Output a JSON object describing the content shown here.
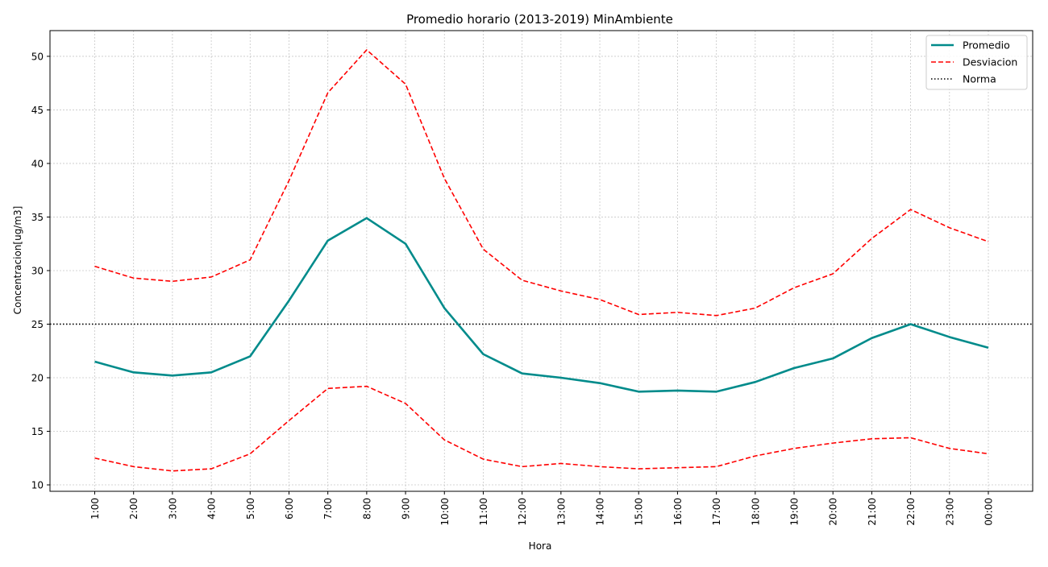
{
  "chart_data": {
    "type": "line",
    "title": "Promedio horario (2013-2019) MinAmbiente",
    "xlabel": "Hora",
    "ylabel": "Concentracion[ug/m3]",
    "categories": [
      "1:00",
      "2:00",
      "3:00",
      "4:00",
      "5:00",
      "6:00",
      "7:00",
      "8:00",
      "9:00",
      "10:00",
      "11:00",
      "12:00",
      "13:00",
      "14:00",
      "15:00",
      "16:00",
      "17:00",
      "18:00",
      "19:00",
      "20:00",
      "21:00",
      "22:00",
      "23:00",
      "00:00"
    ],
    "ylim": [
      9.4,
      52.4
    ],
    "yticks": [
      10,
      15,
      20,
      25,
      30,
      35,
      40,
      45,
      50
    ],
    "grid": true,
    "legend_position": "top-right",
    "series": [
      {
        "name": "Promedio",
        "color": "#008b8b",
        "style": "solid",
        "values": [
          21.5,
          20.5,
          20.2,
          20.5,
          22.0,
          27.2,
          32.8,
          34.9,
          32.5,
          26.5,
          22.2,
          20.4,
          20.0,
          19.5,
          18.7,
          18.8,
          18.7,
          19.6,
          20.9,
          21.8,
          23.7,
          25.0,
          23.8,
          22.8
        ]
      },
      {
        "name": "Desviacion",
        "color": "#ff0000",
        "style": "dashed",
        "values": [
          30.4,
          29.3,
          29.0,
          29.4,
          31.0,
          38.4,
          46.6,
          50.6,
          47.4,
          38.6,
          32.0,
          29.1,
          28.1,
          27.3,
          25.9,
          26.1,
          25.8,
          26.5,
          28.4,
          29.7,
          33.0,
          35.7,
          34.0,
          32.7
        ]
      },
      {
        "name": "",
        "color": "#ff0000",
        "style": "dashed",
        "values": [
          12.5,
          11.7,
          11.3,
          11.5,
          12.9,
          16.0,
          19.0,
          19.2,
          17.6,
          14.2,
          12.4,
          11.7,
          12.0,
          11.7,
          11.5,
          11.6,
          11.7,
          12.7,
          13.4,
          13.9,
          14.3,
          14.4,
          13.4,
          12.9
        ]
      }
    ],
    "reference_line": {
      "name": "Norma",
      "value": 25,
      "color": "#000000",
      "style": "dotted"
    }
  }
}
